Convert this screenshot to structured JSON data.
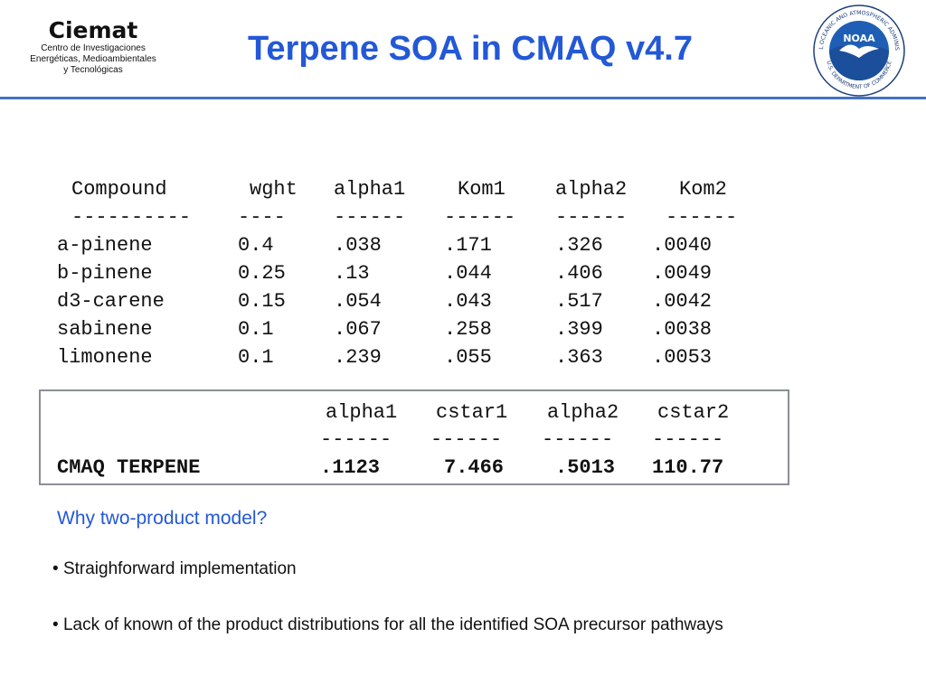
{
  "header": {
    "logo_left": {
      "wordmark": "Ciemat",
      "subtitle_lines": [
        "Centro de Investigaciones",
        "Energéticas, Medioambientales",
        "y Tecnológicas"
      ]
    },
    "title": "Terpene SOA in CMAQ v4.7",
    "logo_right": {
      "ring_text": "NATIONAL OCEANIC AND ATMOSPHERIC ADMINISTRATION",
      "ring_text_bottom": "U.S. DEPARTMENT OF COMMERCE",
      "center_text": "NOAA",
      "accent_color": "#1e5fb5"
    }
  },
  "table": {
    "headers": [
      "Compound",
      "wght",
      "alpha1",
      "Kom1",
      "alpha2",
      "Kom2"
    ],
    "separators": [
      "----------",
      "----",
      "------",
      "------",
      "------",
      "------"
    ],
    "rows": [
      [
        "a-pinene",
        "0.4",
        ".038",
        ".171",
        ".326",
        ".0040"
      ],
      [
        "b-pinene",
        "0.25",
        ".13",
        ".044",
        ".406",
        ".0049"
      ],
      [
        "d3-carene",
        "0.15",
        ".054",
        ".043",
        ".517",
        ".0042"
      ],
      [
        "sabinene",
        "0.1",
        ".067",
        ".258",
        ".399",
        ".0038"
      ],
      [
        "limonene",
        "0.1",
        ".239",
        ".055",
        ".363",
        ".0053"
      ]
    ]
  },
  "cmaq": {
    "headers": [
      "alpha1",
      "cstar1",
      "alpha2",
      "cstar2"
    ],
    "separators": [
      "------",
      "------",
      "------",
      "------"
    ],
    "label": "CMAQ TERPENE",
    "values": [
      ".1123",
      "7.466",
      ".5013",
      "110.77"
    ]
  },
  "question": "Why two-product model?",
  "bullets": [
    "Straighforward implementation",
    "Lack of known of the product distributions for all the identified SOA precursor pathways"
  ],
  "colors": {
    "title": "#2358d6",
    "rule": "#4472c4",
    "box_border": "#8a8f96"
  }
}
